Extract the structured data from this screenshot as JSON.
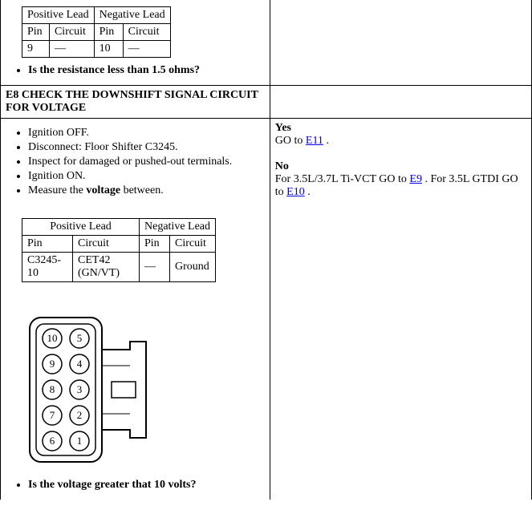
{
  "step_e7": {
    "table1": {
      "headers": [
        "Positive Lead",
        "Negative Lead"
      ],
      "subheaders_pos": [
        "Pin",
        "Circuit"
      ],
      "subheaders_neg": [
        "Pin",
        "Circuit"
      ],
      "row": {
        "pos_pin": "9",
        "pos_circuit": "—",
        "neg_pin": "10",
        "neg_circuit": "—"
      }
    },
    "question": "Is the resistance less than 1.5 ohms?"
  },
  "step_e8": {
    "header": "E8 CHECK THE DOWNSHIFT SIGNAL CIRCUIT FOR VOLTAGE",
    "bullets": [
      "Ignition OFF.",
      "Disconnect: Floor Shifter C3245.",
      "Inspect for damaged or pushed-out terminals.",
      "Ignition ON.",
      "Measure the voltage between."
    ],
    "table2": {
      "headers": [
        "Positive Lead",
        "Negative Lead"
      ],
      "subheaders_pos": [
        "Pin",
        "Circuit"
      ],
      "subheaders_neg": [
        "Pin",
        "Circuit"
      ],
      "row": {
        "pos_pin": "C3245-10",
        "pos_circuit": "CET42 (GN/VT)",
        "neg_pin": "—",
        "neg_circuit": "Ground"
      }
    },
    "connector_pins": [
      "10",
      "5",
      "9",
      "4",
      "8",
      "3",
      "7",
      "2",
      "6",
      "1"
    ],
    "question": "Is the voltage greater that 10 volts?",
    "right": {
      "yes_label": "Yes",
      "yes_text_prefix": "GO to ",
      "yes_link": "E11",
      "yes_text_suffix": " .",
      "no_label": "No",
      "no_text_1": "For 3.5L/3.7L Ti-VCT GO to ",
      "no_link_1": "E9",
      "no_text_2": " . For 3.5L GTDI GO to ",
      "no_link_2": "E10",
      "no_text_3": " ."
    }
  }
}
